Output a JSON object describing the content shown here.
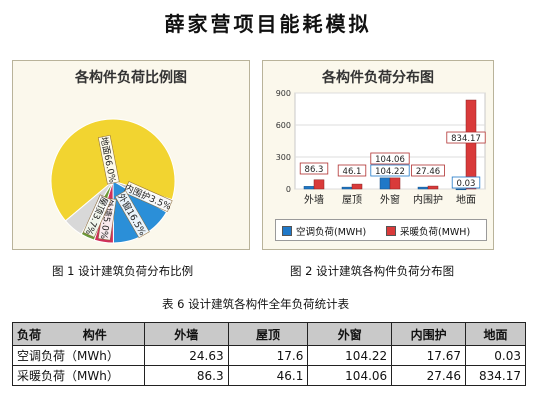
{
  "title": "薛家营项目能耗模拟",
  "captions": {
    "pie": "图 1  设计建筑负荷分布比例",
    "bar": "图 2  设计建筑各构件负荷分布图",
    "table": "表 6  设计建筑各构件全年负荷统计表"
  },
  "colors": {
    "cooling": "#1f78c8",
    "heating": "#d93a3a",
    "panel_bg": "#fbf8ec"
  },
  "chart_data": [
    {
      "type": "pie",
      "title": "各构件负荷比例图",
      "slices": [
        {
          "label": "地面66.0%",
          "value": 66.0,
          "color": "#f2d430"
        },
        {
          "label": "内围护3.5%",
          "value": 3.5,
          "color": "#bdbdbd"
        },
        {
          "label": "外窗16.5%",
          "value": 16.5,
          "color": "#2b8fd8"
        },
        {
          "label": "外墙5.0%",
          "value": 5.0,
          "color": "#d0305a"
        },
        {
          "label": "屋顶3.7%",
          "value": 3.7,
          "color": "#6a9a38"
        },
        {
          "label": "",
          "value": 5.3,
          "color": "#d8d8d8"
        }
      ]
    },
    {
      "type": "bar",
      "title": "各构件负荷分布图",
      "categories": [
        "外墙",
        "屋顶",
        "外窗",
        "内围护",
        "地面"
      ],
      "series": [
        {
          "name": "空调负荷(MWH)",
          "values": [
            24.63,
            17.6,
            104.22,
            17.67,
            0.03
          ],
          "color": "#1f78c8"
        },
        {
          "name": "采暖负荷(MWH)",
          "values": [
            86.3,
            46.1,
            104.06,
            27.46,
            834.17
          ],
          "color": "#d93a3a"
        }
      ],
      "data_labels": [
        {
          "text": "86.3"
        },
        {
          "text": "46.1"
        },
        {
          "text": "104.06"
        },
        {
          "text": "104.22"
        },
        {
          "text": "27.46"
        },
        {
          "text": "834.17"
        },
        {
          "text": "0.03"
        }
      ],
      "y_ticks": [
        "0",
        "300",
        "600",
        "900"
      ],
      "ylim": [
        0,
        900
      ],
      "grid": true,
      "legend_position": "bottom"
    }
  ],
  "table": {
    "headers": [
      "负荷          构件",
      "外墙",
      "屋顶",
      "外窗",
      "内围护",
      "地面"
    ],
    "rows": [
      [
        "空调负荷（MWh）",
        "24.63",
        "17.6",
        "104.22",
        "17.67",
        "0.03"
      ],
      [
        "采暖负荷（MWh）",
        "86.3",
        "46.1",
        "104.06",
        "27.46",
        "834.17"
      ]
    ]
  }
}
